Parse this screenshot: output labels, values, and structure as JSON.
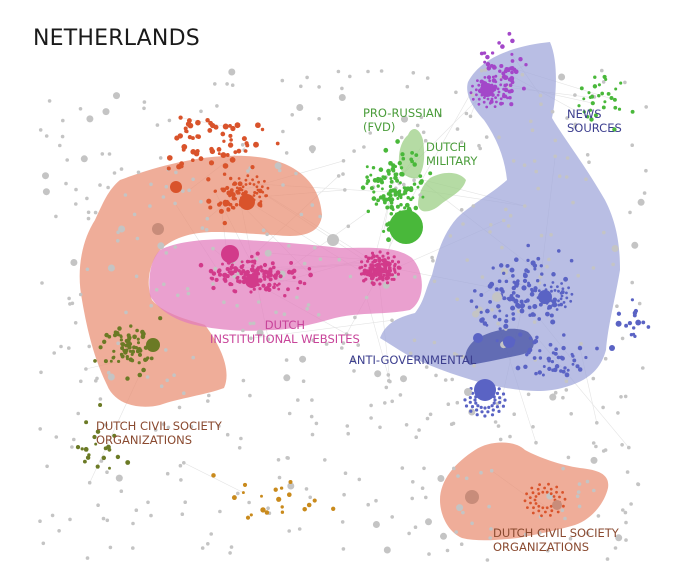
{
  "title": "NETHERLANDS",
  "clusters": [
    {
      "id": "pro-russian",
      "lines": [
        "PRO-RUSSIAN",
        "(FVD)"
      ],
      "color": "#4a9c3a"
    },
    {
      "id": "dutch-military",
      "lines": [
        "DUTCH",
        "MILITARY"
      ],
      "color": "#4a9c3a"
    },
    {
      "id": "news-sources",
      "lines": [
        "NEWS",
        "SOURCES"
      ],
      "color": "#3d3f8f"
    },
    {
      "id": "dutch-institutional-websites",
      "lines": [
        "DUTCH",
        "INSTITUTIONAL WEBSITES"
      ],
      "color": "#c8449a"
    },
    {
      "id": "anti-governmental",
      "lines": [
        "ANTI-GOVERNMENTAL"
      ],
      "color": "#3d3f8f"
    },
    {
      "id": "dutch-civil-society-1",
      "lines": [
        "DUTCH CIVIL SOCIETY",
        "ORGANIZATIONS"
      ],
      "color": "#8a4a30"
    },
    {
      "id": "dutch-civil-society-2",
      "lines": [
        "DUTCH CIVIL SOCIETY",
        "ORGANIZATIONS"
      ],
      "color": "#8a4a30"
    }
  ],
  "colors": {
    "background": "#ffffff",
    "gray_node": "#c4c4c4",
    "gray_edge": "#e4e4e4",
    "red_node": "#d9532b",
    "pink_node": "#d23a8a",
    "green_node": "#49b83a",
    "purple_node": "#a347c9",
    "blue_node": "#5a63c4",
    "olive_node": "#6b7a25",
    "orange_node": "#c98a1c",
    "pink_region": "#e27bbd",
    "salmon_region": "#e98e72",
    "green_region": "#9ccf86",
    "blue_region": "#9ea5da",
    "dark_blue_region": "#4c57a8"
  }
}
